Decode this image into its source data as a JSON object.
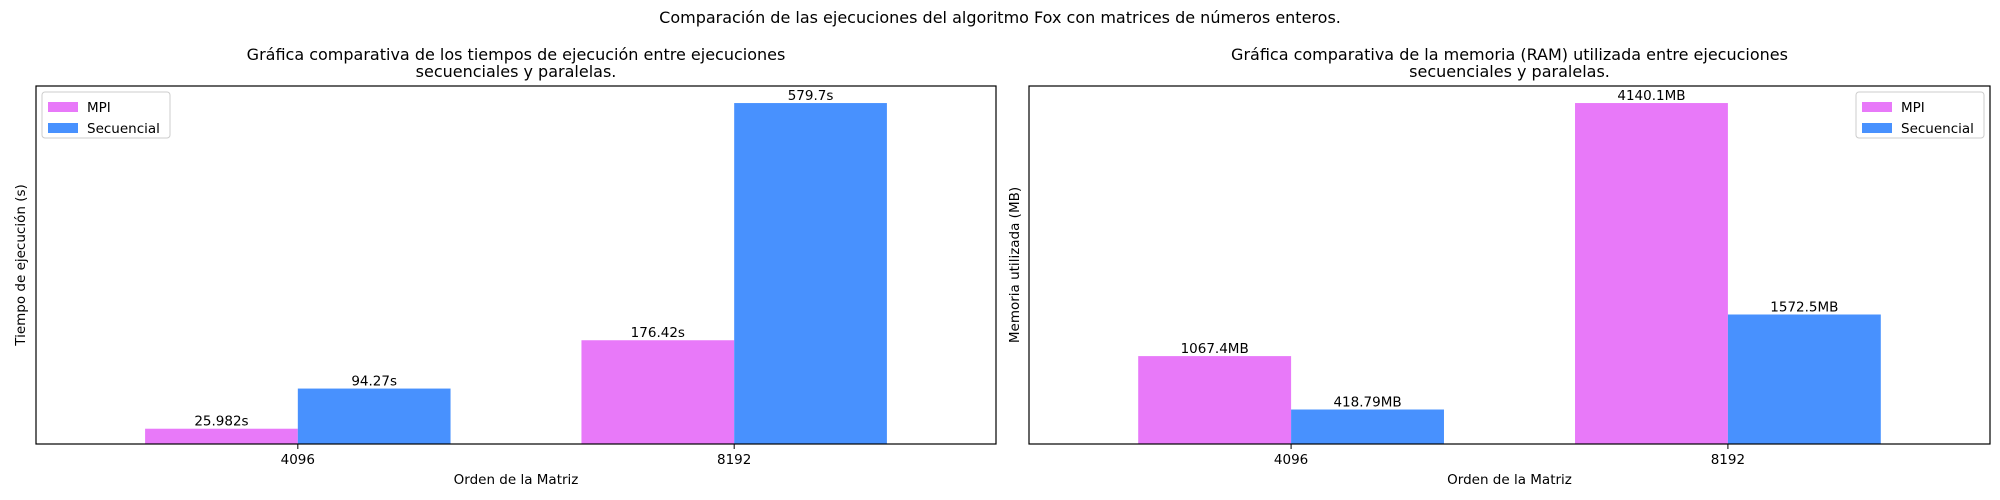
{
  "figure": {
    "suptitle": "Comparación de las ejecuciones del algoritmo Fox con matrices de números enteros."
  },
  "colors": {
    "mpi": "#E879F9",
    "secuencial": "#4891FE"
  },
  "chart_data": [
    {
      "type": "bar",
      "title": "Gráfica comparativa de los tiempos de ejecución entre ejecuciones\nsecuenciales y paralelas.",
      "xlabel": "Orden de la Matriz",
      "ylabel": "Tiempo de ejecución (s)",
      "categories": [
        "4096",
        "8192"
      ],
      "series": [
        {
          "name": "MPI",
          "values": [
            25.982,
            176.42
          ],
          "labels": [
            "25.982s",
            "176.42s"
          ]
        },
        {
          "name": "Secuencial",
          "values": [
            94.27,
            579.7
          ],
          "labels": [
            "94.27s",
            "579.7s"
          ]
        }
      ],
      "ylim": [
        0,
        608.7
      ],
      "y_ticks_visible": false,
      "grid": false,
      "legend_position": "upper left"
    },
    {
      "type": "bar",
      "title": "Gráfica comparativa de la memoria (RAM) utilizada entre ejecuciones\nsecuenciales y paralelas.",
      "xlabel": "Orden de la Matriz",
      "ylabel": "Memoria utilizada (MB)",
      "categories": [
        "4096",
        "8192"
      ],
      "series": [
        {
          "name": "MPI",
          "values": [
            1067.4,
            4140.1
          ],
          "labels": [
            "1067.4MB",
            "4140.1MB"
          ]
        },
        {
          "name": "Secuencial",
          "values": [
            418.79,
            1572.5
          ],
          "labels": [
            "418.79MB",
            "1572.5MB"
          ]
        }
      ],
      "ylim": [
        0,
        4347.1
      ],
      "y_ticks_visible": false,
      "grid": false,
      "legend_position": "upper right"
    }
  ]
}
